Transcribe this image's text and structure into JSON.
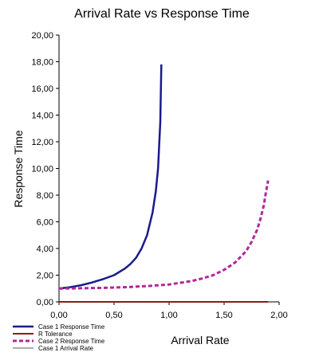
{
  "chart_data": {
    "type": "line",
    "title": "Arrival Rate vs Response Time",
    "xlabel": "Arrival Rate",
    "ylabel": "Response Time",
    "xlim": [
      0,
      2
    ],
    "ylim": [
      0,
      20
    ],
    "x_ticks": [
      "0,00",
      "0,50",
      "1,00",
      "1,50",
      "2,00"
    ],
    "y_ticks": [
      "0,00",
      "2,00",
      "4,00",
      "6,00",
      "8,00",
      "10,00",
      "12,00",
      "14,00",
      "16,00",
      "18,00",
      "20,00"
    ],
    "grid": false,
    "legend_position": "bottom-left",
    "series": [
      {
        "name": "Case 1 Response Time",
        "color": "#1a1a8c",
        "style": "solid",
        "x": [
          0,
          0.1,
          0.2,
          0.3,
          0.4,
          0.5,
          0.6,
          0.65,
          0.7,
          0.75,
          0.8,
          0.85,
          0.88,
          0.9,
          0.92,
          0.93
        ],
        "y": [
          1.0,
          1.1,
          1.25,
          1.45,
          1.7,
          2.0,
          2.5,
          2.85,
          3.3,
          4.0,
          5.0,
          6.7,
          8.3,
          10.0,
          13.5,
          17.8
        ]
      },
      {
        "name": "R Tolerance",
        "color": "#8b1a1a",
        "style": "solid",
        "x": [
          0,
          1.9
        ],
        "y": [
          0,
          0
        ]
      },
      {
        "name": "Case 2 Response Time",
        "color": "#b0289a",
        "style": "dashed",
        "x": [
          0,
          0.2,
          0.4,
          0.6,
          0.8,
          1.0,
          1.2,
          1.3,
          1.4,
          1.5,
          1.6,
          1.7,
          1.75,
          1.8,
          1.83,
          1.86,
          1.88,
          1.9
        ],
        "y": [
          1.0,
          1.02,
          1.05,
          1.1,
          1.18,
          1.3,
          1.55,
          1.75,
          2.0,
          2.4,
          2.95,
          3.8,
          4.5,
          5.4,
          6.2,
          7.2,
          8.2,
          9.1
        ]
      },
      {
        "name": "Case 1 Arrival Rate",
        "color": "#555555",
        "style": "solid",
        "x": [],
        "y": []
      }
    ]
  }
}
